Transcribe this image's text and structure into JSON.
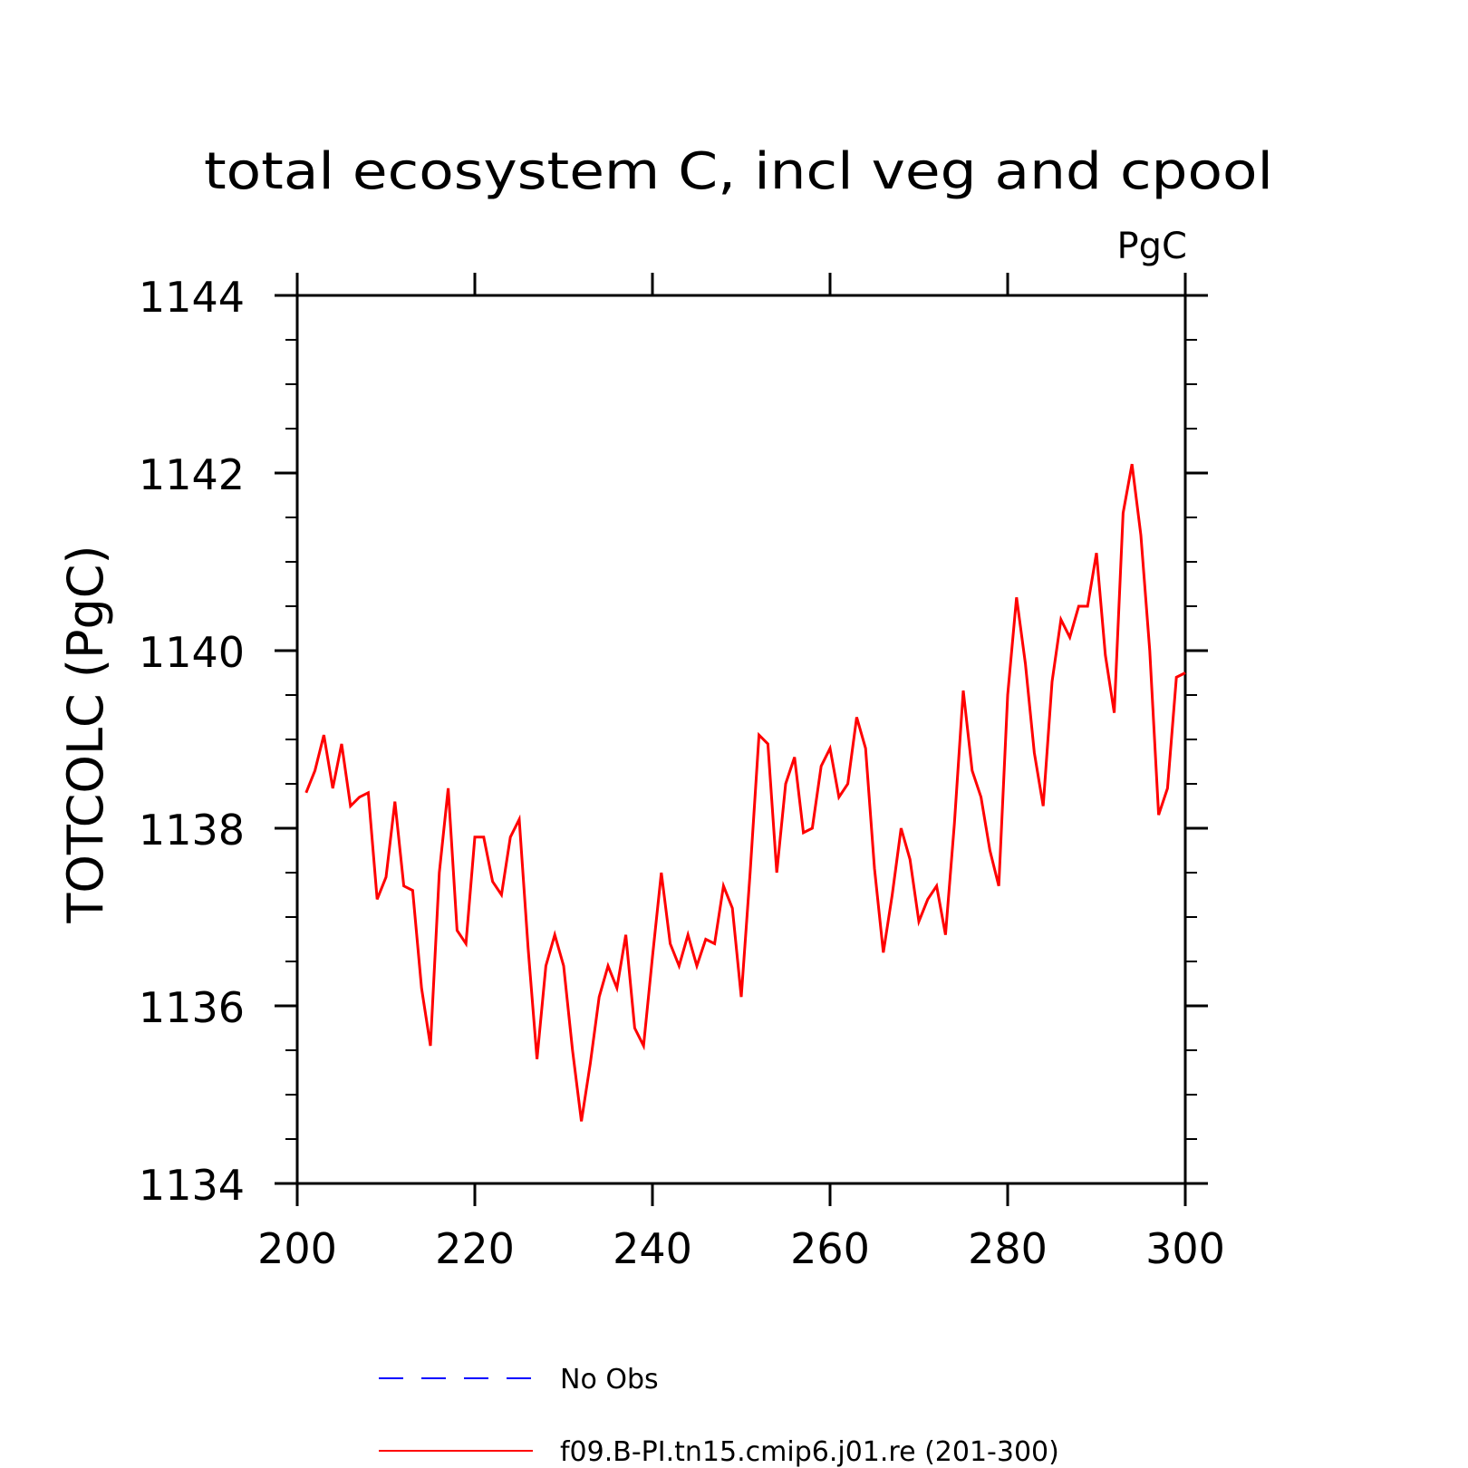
{
  "chart_data": {
    "type": "line",
    "title": "total ecosystem C, incl veg and cpool",
    "units_label": "PgC",
    "ylabel": "TOTCOLC  (PgC)",
    "xlabel": "",
    "xlim": [
      200,
      300
    ],
    "ylim": [
      1134,
      1144
    ],
    "x_ticks": [
      200,
      220,
      240,
      260,
      280,
      300
    ],
    "y_ticks": [
      1134,
      1136,
      1138,
      1140,
      1142,
      1144
    ],
    "x_minor_step": 0,
    "y_minor_step": 0.5,
    "grid": false,
    "legend_position": "bottom",
    "series": [
      {
        "name": "No Obs",
        "color": "#0000ff",
        "style": "dashed",
        "x": [],
        "y": []
      },
      {
        "name": "f09.B-PI.tn15.cmip6.j01.re (201-300)",
        "color": "#ff0000",
        "style": "solid",
        "x": [
          201,
          202,
          203,
          204,
          205,
          206,
          207,
          208,
          209,
          210,
          211,
          212,
          213,
          214,
          215,
          216,
          217,
          218,
          219,
          220,
          221,
          222,
          223,
          224,
          225,
          226,
          227,
          228,
          229,
          230,
          231,
          232,
          233,
          234,
          235,
          236,
          237,
          238,
          239,
          240,
          241,
          242,
          243,
          244,
          245,
          246,
          247,
          248,
          249,
          250,
          251,
          252,
          253,
          254,
          255,
          256,
          257,
          258,
          259,
          260,
          261,
          262,
          263,
          264,
          265,
          266,
          267,
          268,
          269,
          270,
          271,
          272,
          273,
          274,
          275,
          276,
          277,
          278,
          279,
          280,
          281,
          282,
          283,
          284,
          285,
          286,
          287,
          288,
          289,
          290,
          291,
          292,
          293,
          294,
          295,
          296,
          297,
          298,
          299,
          300
        ],
        "y": [
          1138.4,
          1138.65,
          1139.05,
          1138.45,
          1138.95,
          1138.25,
          1138.35,
          1138.4,
          1137.2,
          1137.45,
          1138.3,
          1137.35,
          1137.3,
          1136.2,
          1135.55,
          1137.5,
          1138.45,
          1136.85,
          1136.7,
          1137.9,
          1137.9,
          1137.4,
          1137.25,
          1137.9,
          1138.1,
          1136.65,
          1135.4,
          1136.45,
          1136.8,
          1136.45,
          1135.5,
          1134.7,
          1135.35,
          1136.1,
          1136.45,
          1136.2,
          1136.8,
          1135.75,
          1135.55,
          1136.55,
          1137.5,
          1136.7,
          1136.45,
          1136.8,
          1136.45,
          1136.75,
          1136.7,
          1137.35,
          1137.1,
          1136.1,
          1137.5,
          1139.05,
          1138.95,
          1137.5,
          1138.5,
          1138.8,
          1137.95,
          1138.0,
          1138.7,
          1138.9,
          1138.35,
          1138.5,
          1139.25,
          1138.9,
          1137.55,
          1136.6,
          1137.25,
          1138.0,
          1137.65,
          1136.95,
          1137.2,
          1137.35,
          1136.8,
          1138.05,
          1139.55,
          1138.65,
          1138.35,
          1137.75,
          1137.35,
          1139.5,
          1140.6,
          1139.85,
          1138.85,
          1138.25,
          1139.65,
          1140.35,
          1140.15,
          1140.5,
          1140.5,
          1141.1,
          1139.95,
          1139.3,
          1141.55,
          1142.1,
          1141.3,
          1140.0,
          1138.15,
          1138.45,
          1139.7,
          1139.75
        ]
      }
    ]
  }
}
